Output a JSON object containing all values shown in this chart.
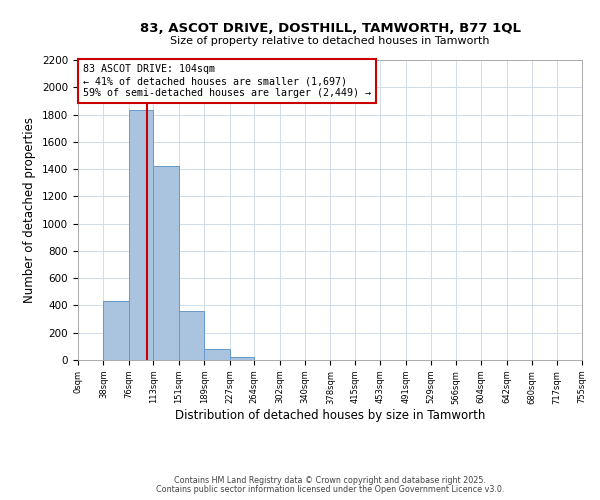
{
  "title1": "83, ASCOT DRIVE, DOSTHILL, TAMWORTH, B77 1QL",
  "title2": "Size of property relative to detached houses in Tamworth",
  "xlabel": "Distribution of detached houses by size in Tamworth",
  "ylabel": "Number of detached properties",
  "bin_edges": [
    0,
    38,
    76,
    113,
    151,
    189,
    227,
    264,
    302,
    340,
    378,
    415,
    453,
    491,
    529,
    566,
    604,
    642,
    680,
    717,
    755
  ],
  "bin_counts": [
    0,
    430,
    1830,
    1420,
    360,
    80,
    25,
    0,
    0,
    0,
    0,
    0,
    0,
    0,
    0,
    0,
    0,
    0,
    0,
    0
  ],
  "bar_color": "#aac4e0",
  "bar_edge_color": "#6699cc",
  "vline_x": 104,
  "vline_color": "#cc0000",
  "annotation_line1": "83 ASCOT DRIVE: 104sqm",
  "annotation_line2": "← 41% of detached houses are smaller (1,697)",
  "annotation_line3": "59% of semi-detached houses are larger (2,449) →",
  "annotation_box_facecolor": "#ffffff",
  "annotation_box_edgecolor": "#cc0000",
  "tick_labels": [
    "0sqm",
    "38sqm",
    "76sqm",
    "113sqm",
    "151sqm",
    "189sqm",
    "227sqm",
    "264sqm",
    "302sqm",
    "340sqm",
    "378sqm",
    "415sqm",
    "453sqm",
    "491sqm",
    "529sqm",
    "566sqm",
    "604sqm",
    "642sqm",
    "680sqm",
    "717sqm",
    "755sqm"
  ],
  "ylim": [
    0,
    2200
  ],
  "yticks": [
    0,
    200,
    400,
    600,
    800,
    1000,
    1200,
    1400,
    1600,
    1800,
    2000,
    2200
  ],
  "footer1": "Contains HM Land Registry data © Crown copyright and database right 2025.",
  "footer2": "Contains public sector information licensed under the Open Government Licence v3.0.",
  "background_color": "#ffffff",
  "grid_color": "#d0dce8"
}
